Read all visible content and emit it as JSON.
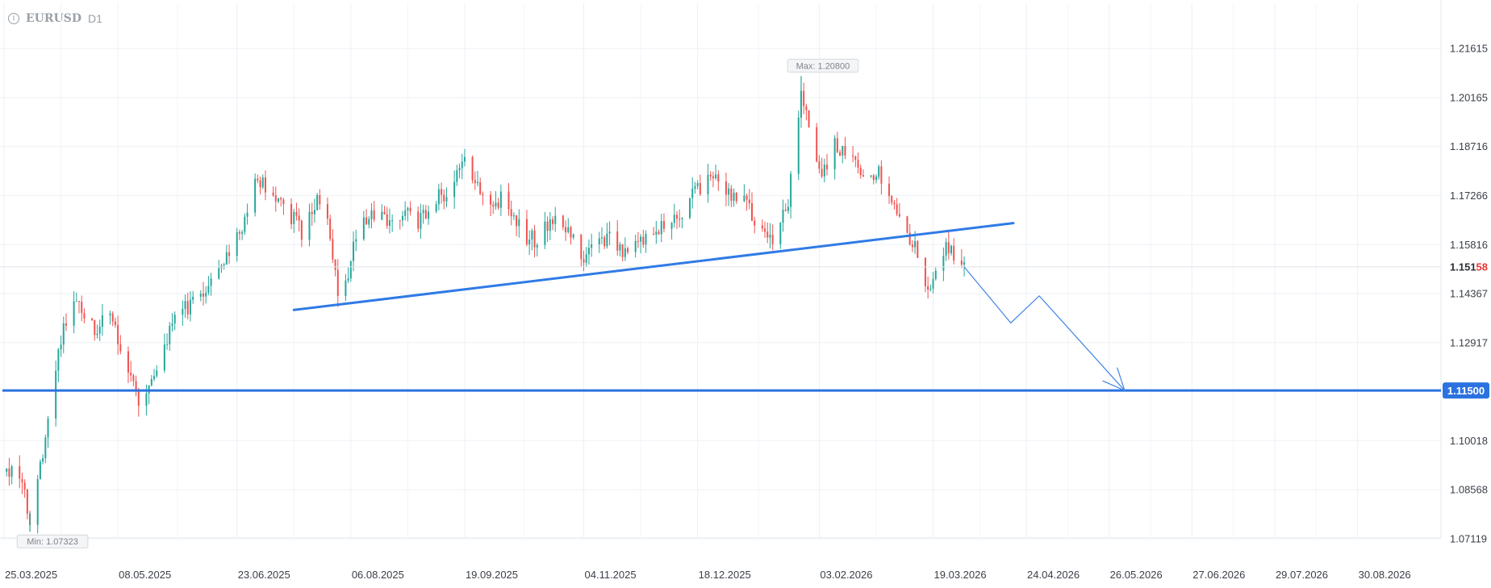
{
  "header": {
    "symbol": "EURUSD",
    "timeframe": "D1",
    "info_icon": "info-icon"
  },
  "chart_data": {
    "type": "candlestick",
    "symbol": "EURUSD",
    "timeframe": "D1",
    "x_start": "2025-03-25",
    "x_end": "2026-09-25",
    "x_ticks": [
      "25.03.2025",
      "08.05.2025",
      "23.06.2025",
      "06.08.2025",
      "19.09.2025",
      "04.11.2025",
      "18.12.2025",
      "03.02.2026",
      "19.03.2026",
      "24.04.2026",
      "26.05.2026",
      "27.06.2026",
      "29.07.2026",
      "30.08.2026"
    ],
    "ylim": [
      1.0647,
      1.22264
    ],
    "y_ticks": [
      "1.21615",
      "1.20165",
      "1.18716",
      "1.17266",
      "1.15816",
      "1.14367",
      "1.12917",
      "1.11500",
      "1.10018",
      "1.08568",
      "1.07119"
    ],
    "current_price_label": "1.15158",
    "current_price": 1.15158,
    "max_label": "Max: 1.20800",
    "max": 1.208,
    "max_date": "2026-01-27",
    "min_label": "Min: 1.07323",
    "min": 1.07323,
    "min_date": "2025-04-04",
    "target_level_label": "1.11500",
    "target_level": 1.115,
    "trendline": {
      "start": [
        "2025-07-15",
        1.13883
      ],
      "end": [
        "2026-04-19",
        1.16451
      ]
    },
    "projection": [
      [
        "2026-03-31",
        1.15158
      ],
      [
        "2026-04-18",
        1.135
      ],
      [
        "2026-04-29",
        1.143
      ],
      [
        "2026-06-01",
        1.115
      ]
    ],
    "path": [
      [
        "2025-03-25",
        1.09
      ],
      [
        "2025-03-30",
        1.0935
      ],
      [
        "2025-04-04",
        1.0765
      ],
      [
        "2025-04-10",
        1.1
      ],
      [
        "2025-04-13",
        1.115
      ],
      [
        "2025-04-16",
        1.13
      ],
      [
        "2025-04-20",
        1.143
      ],
      [
        "2025-04-25",
        1.137
      ],
      [
        "2025-04-30",
        1.133
      ],
      [
        "2025-05-04",
        1.138
      ],
      [
        "2025-05-08",
        1.13
      ],
      [
        "2025-05-12",
        1.122
      ],
      [
        "2025-05-15",
        1.115
      ],
      [
        "2025-05-18",
        1.109
      ],
      [
        "2025-05-22",
        1.12
      ],
      [
        "2025-05-26",
        1.13
      ],
      [
        "2025-06-01",
        1.138
      ],
      [
        "2025-06-06",
        1.14
      ],
      [
        "2025-06-11",
        1.145
      ],
      [
        "2025-06-16",
        1.152
      ],
      [
        "2025-06-20",
        1.156
      ],
      [
        "2025-06-25",
        1.162
      ],
      [
        "2025-06-29",
        1.175
      ],
      [
        "2025-07-03",
        1.177
      ],
      [
        "2025-07-08",
        1.172
      ],
      [
        "2025-07-13",
        1.168
      ],
      [
        "2025-07-18",
        1.162
      ],
      [
        "2025-07-23",
        1.17
      ],
      [
        "2025-07-26",
        1.174
      ],
      [
        "2025-07-29",
        1.16
      ],
      [
        "2025-08-01",
        1.145
      ],
      [
        "2025-08-03",
        1.142
      ],
      [
        "2025-08-07",
        1.158
      ],
      [
        "2025-08-12",
        1.165
      ],
      [
        "2025-08-17",
        1.168
      ],
      [
        "2025-08-22",
        1.165
      ],
      [
        "2025-08-27",
        1.168
      ],
      [
        "2025-09-01",
        1.165
      ],
      [
        "2025-09-06",
        1.17
      ],
      [
        "2025-09-12",
        1.174
      ],
      [
        "2025-09-16",
        1.18
      ],
      [
        "2025-09-19",
        1.182
      ],
      [
        "2025-09-24",
        1.175
      ],
      [
        "2025-09-28",
        1.17
      ],
      [
        "2025-10-03",
        1.172
      ],
      [
        "2025-10-08",
        1.165
      ],
      [
        "2025-10-13",
        1.16
      ],
      [
        "2025-10-18",
        1.16
      ],
      [
        "2025-10-23",
        1.167
      ],
      [
        "2025-10-28",
        1.162
      ],
      [
        "2025-11-02",
        1.157
      ],
      [
        "2025-11-04",
        1.154
      ],
      [
        "2025-11-09",
        1.158
      ],
      [
        "2025-11-14",
        1.162
      ],
      [
        "2025-11-18",
        1.158
      ],
      [
        "2025-11-21",
        1.154
      ],
      [
        "2025-11-26",
        1.16
      ],
      [
        "2025-12-01",
        1.162
      ],
      [
        "2025-12-06",
        1.165
      ],
      [
        "2025-12-11",
        1.166
      ],
      [
        "2025-12-16",
        1.172
      ],
      [
        "2025-12-21",
        1.177
      ],
      [
        "2025-12-26",
        1.176
      ],
      [
        "2025-12-31",
        1.173
      ],
      [
        "2026-01-05",
        1.17
      ],
      [
        "2026-01-10",
        1.165
      ],
      [
        "2026-01-15",
        1.16
      ],
      [
        "2026-01-19",
        1.164
      ],
      [
        "2026-01-22",
        1.172
      ],
      [
        "2026-01-25",
        1.19
      ],
      [
        "2026-01-27",
        1.203
      ],
      [
        "2026-01-30",
        1.195
      ],
      [
        "2026-02-03",
        1.182
      ],
      [
        "2026-02-05",
        1.18
      ],
      [
        "2026-02-08",
        1.188
      ],
      [
        "2026-02-13",
        1.186
      ],
      [
        "2026-02-18",
        1.182
      ],
      [
        "2026-02-23",
        1.178
      ],
      [
        "2026-02-28",
        1.179
      ],
      [
        "2026-03-03",
        1.17
      ],
      [
        "2026-03-07",
        1.162
      ],
      [
        "2026-03-10",
        1.16
      ],
      [
        "2026-03-13",
        1.156
      ],
      [
        "2026-03-17",
        1.145
      ],
      [
        "2026-03-21",
        1.15
      ],
      [
        "2026-03-24",
        1.16
      ],
      [
        "2026-03-27",
        1.155
      ],
      [
        "2026-03-31",
        1.1516
      ]
    ],
    "grid": true
  }
}
